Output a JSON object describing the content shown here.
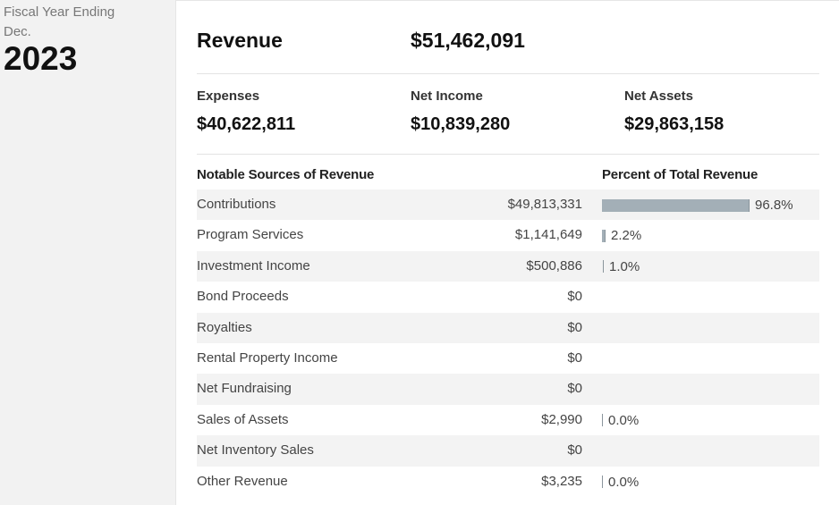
{
  "fiscal": {
    "label": "Fiscal Year Ending Dec.",
    "year": "2023"
  },
  "summary": {
    "revenue_label": "Revenue",
    "revenue_value": "$51,462,091",
    "expenses_label": "Expenses",
    "expenses_value": "$40,622,811",
    "net_income_label": "Net Income",
    "net_income_value": "$10,839,280",
    "net_assets_label": "Net Assets",
    "net_assets_value": "$29,863,158"
  },
  "table": {
    "col_source": "Notable Sources of Revenue",
    "col_percent": "Percent of Total Revenue",
    "rows": [
      {
        "name": "Contributions",
        "amount": "$49,813,331",
        "percent": "96.8%",
        "percent_value": 96.8
      },
      {
        "name": "Program Services",
        "amount": "$1,141,649",
        "percent": "2.2%",
        "percent_value": 2.2
      },
      {
        "name": "Investment Income",
        "amount": "$500,886",
        "percent": "1.0%",
        "percent_value": 1.0
      },
      {
        "name": "Bond Proceeds",
        "amount": "$0",
        "percent": "",
        "percent_value": null
      },
      {
        "name": "Royalties",
        "amount": "$0",
        "percent": "",
        "percent_value": null
      },
      {
        "name": "Rental Property Income",
        "amount": "$0",
        "percent": "",
        "percent_value": null
      },
      {
        "name": "Net Fundraising",
        "amount": "$0",
        "percent": "",
        "percent_value": null
      },
      {
        "name": "Sales of Assets",
        "amount": "$2,990",
        "percent": "0.0%",
        "percent_value": 0.0
      },
      {
        "name": "Net Inventory Sales",
        "amount": "$0",
        "percent": "",
        "percent_value": null
      },
      {
        "name": "Other Revenue",
        "amount": "$3,235",
        "percent": "0.0%",
        "percent_value": 0.0
      }
    ]
  },
  "colors": {
    "bar": "#a3afb7",
    "shade": "#f3f3f3"
  }
}
